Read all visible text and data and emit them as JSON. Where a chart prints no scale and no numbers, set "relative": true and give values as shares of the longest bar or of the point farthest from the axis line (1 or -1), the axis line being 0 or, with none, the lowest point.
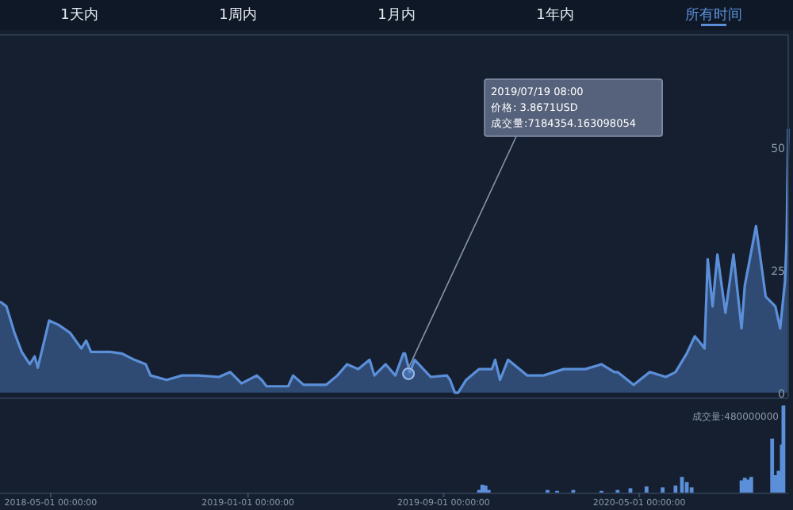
{
  "chart_data": [
    {
      "type": "area",
      "tick_labels": "y",
      "xlim": [
        "2018-02-27",
        "2020-11-02"
      ],
      "ylim": [
        -1,
        73
      ],
      "yticks": [
        0,
        25,
        50
      ],
      "annotations": [
        "1天内",
        "1周内",
        "1月内",
        "1年内",
        "所有时间",
        {
          "text": "2019/07/19 08:00\n价格: 3.8671USD\n成交量:7184354.163098054",
          "x": "2019-07-19T08:00",
          "y": 3.8671
        }
      ],
      "x": [
        "2018-02-27",
        "2018-03-07",
        "2018-03-17",
        "2018-03-26",
        "2018-04-05",
        "2018-04-11",
        "2018-04-15",
        "2018-04-29",
        "2018-05-11",
        "2018-05-25",
        "2018-06-08",
        "2018-06-14",
        "2018-06-20",
        "2018-07-14",
        "2018-07-28",
        "2018-08-13",
        "2018-08-27",
        "2018-09-02",
        "2018-09-22",
        "2018-10-11",
        "2018-10-31",
        "2018-11-26",
        "2018-12-10",
        "2018-12-24",
        "2019-01-12",
        "2019-01-18",
        "2019-01-24",
        "2019-02-20",
        "2019-02-26",
        "2019-03-11",
        "2019-04-08",
        "2019-04-22",
        "2019-05-04",
        "2019-05-18",
        "2019-06-01",
        "2019-06-07",
        "2019-06-21",
        "2019-07-03",
        "2019-07-13",
        "2019-07-15",
        "2019-07-21",
        "2019-07-27",
        "2019-08-16",
        "2019-09-05",
        "2019-09-09",
        "2019-09-15",
        "2019-09-19",
        "2019-09-29",
        "2019-10-15",
        "2019-10-31",
        "2019-11-04",
        "2019-11-10",
        "2019-11-20",
        "2019-12-14",
        "2020-01-03",
        "2020-01-28",
        "2020-02-24",
        "2020-03-15",
        "2020-03-31",
        "2020-04-04",
        "2020-04-24",
        "2020-05-14",
        "2020-06-03",
        "2020-06-15",
        "2020-06-29",
        "2020-07-09",
        "2020-07-17",
        "2020-07-21",
        "2020-07-25",
        "2020-07-31",
        "2020-08-06",
        "2020-08-16",
        "2020-08-26",
        "2020-09-05",
        "2020-09-09",
        "2020-09-23",
        "2020-10-05",
        "2020-10-17",
        "2020-10-23",
        "2020-10-29",
        "2020-10-31",
        "2020-11-02"
      ],
      "series": [
        {
          "color": "#5b8fd9",
          "values": [
            18.6,
            17.6,
            12.2,
            8.3,
            5.8,
            7.4,
            5.1,
            14.7,
            13.8,
            12.2,
            9.0,
            10.6,
            8.3,
            8.3,
            8.0,
            6.7,
            5.8,
            3.5,
            2.6,
            3.5,
            3.5,
            3.2,
            4.2,
            1.9,
            3.5,
            2.6,
            1.3,
            1.3,
            3.5,
            1.6,
            1.6,
            3.5,
            5.8,
            4.8,
            6.7,
            3.5,
            5.8,
            3.5,
            8.0,
            8.0,
            4.2,
            6.7,
            3.2,
            3.5,
            2.6,
            0,
            0,
            2.6,
            4.8,
            4.8,
            6.7,
            2.6,
            6.7,
            3.5,
            3.5,
            4.8,
            4.8,
            5.8,
            4.2,
            4.2,
            1.6,
            4.2,
            3.2,
            4.2,
            8.0,
            11.5,
            9.9,
            9.0,
            27.2,
            17.6,
            28.2,
            16.3,
            28.2,
            13.1,
            21.8,
            34.0,
            19.6,
            17.6,
            13.1,
            22.8,
            31.4,
            53.8
          ]
        }
      ]
    },
    {
      "type": "bar",
      "relative": true,
      "tick_labels": "x",
      "xlim": [
        "2018-02-27",
        "2020-11-02"
      ],
      "xticks": [
        {
          "value": "2018-05-01",
          "label": "2018-05-01 00:00:00"
        },
        {
          "value": "2019-01-01",
          "label": "2019-01-01 00:00:00"
        },
        {
          "value": "2019-09-01",
          "label": "2019-09-01 00:00:00"
        },
        {
          "value": "2020-05-01",
          "label": "2020-05-01 00:00:00"
        }
      ],
      "annotations": [
        "成交量:480000000"
      ],
      "x": [
        "2019-10-15",
        "2019-10-19",
        "2019-10-23",
        "2019-10-27",
        "2020-01-08",
        "2020-01-20",
        "2020-02-09",
        "2020-03-15",
        "2020-04-04",
        "2020-04-20",
        "2020-05-10",
        "2020-05-30",
        "2020-06-15",
        "2020-06-23",
        "2020-06-29",
        "2020-07-05",
        "2020-09-05",
        "2020-09-09",
        "2020-09-13",
        "2020-09-17",
        "2020-10-13",
        "2020-10-17",
        "2020-10-21",
        "2020-10-25",
        "2020-10-27"
      ],
      "color": "#5b8fd9",
      "values": [
        0.03,
        0.09,
        0.08,
        0.03,
        0.03,
        0.02,
        0.03,
        0.02,
        0.03,
        0.05,
        0.07,
        0.06,
        0.08,
        0.18,
        0.12,
        0.06,
        0.14,
        0.17,
        0.15,
        0.18,
        0.62,
        0.2,
        0.25,
        0.55,
        1
      ]
    }
  ]
}
